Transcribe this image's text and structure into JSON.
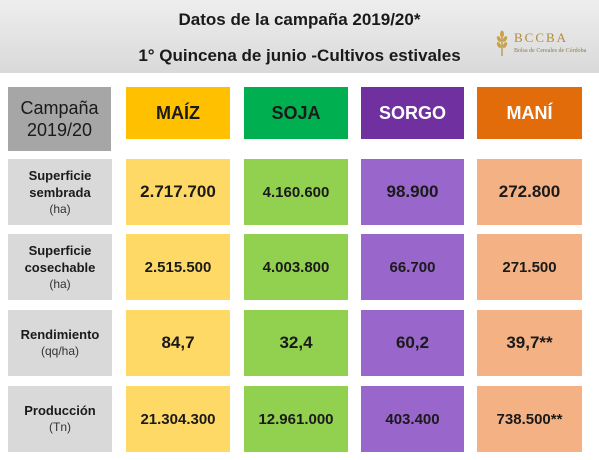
{
  "header": {
    "title_line1": "Datos de la campaña 2019/20*",
    "title_line2": "1° Quincena de junio -Cultivos estivales",
    "logo_name": "BCCBA",
    "logo_sub": "Bolsa de Cereales de Córdoba"
  },
  "table": {
    "corner_line1": "Campaña",
    "corner_line2": "2019/20",
    "crops": [
      "MAÍZ",
      "SOJA",
      "SORGO",
      "MANÍ"
    ],
    "rows": [
      {
        "label_line1": "Superficie",
        "label_line2": "sembrada",
        "unit": "(ha)",
        "values": [
          "2.717.700",
          "4.160.600",
          "98.900",
          "272.800"
        ]
      },
      {
        "label_line1": "Superficie",
        "label_line2": "cosechable",
        "unit": "(ha)",
        "values": [
          "2.515.500",
          "4.003.800",
          "66.700",
          "271.500"
        ]
      },
      {
        "label_line1": "Rendimiento",
        "label_line2": "",
        "unit": "(qq/ha)",
        "values": [
          "84,7",
          "32,4",
          "60,2",
          "39,7**"
        ]
      },
      {
        "label_line1": "Producción",
        "label_line2": "",
        "unit": "(Tn)",
        "values": [
          "21.304.300",
          "12.961.000",
          "403.400",
          "738.500**"
        ]
      }
    ]
  },
  "colors": {
    "maiz": "#ffc000",
    "soja": "#00b050",
    "sorgo": "#7030a0",
    "mani": "#e26b0a",
    "maiz_light": "#ffd966",
    "soja_light": "#92d050",
    "sorgo_light": "#9966cc",
    "mani_light": "#f4b183",
    "label_bg": "#d9d9d9",
    "corner_bg": "#a6a6a6"
  }
}
